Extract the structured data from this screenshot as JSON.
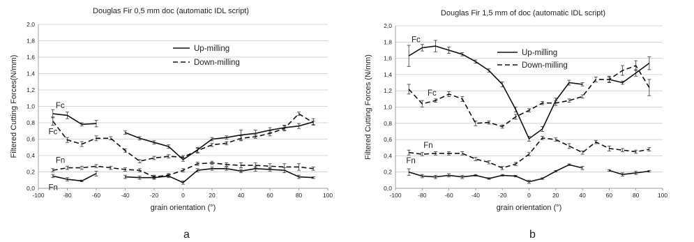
{
  "chart_data": [
    {
      "type": "line",
      "title": "Douglas Fir 0,5 mm doc (automatic IDL script)",
      "xlabel": "grain orientation (°)",
      "ylabel": "Filtered Cutting Forces(N/mm)",
      "panel_label": "a",
      "xlim": [
        -100,
        100
      ],
      "ylim": [
        0,
        2
      ],
      "xticks": [
        "-100",
        "-80",
        "-60",
        "-40",
        "-20",
        "0",
        "20",
        "40",
        "60",
        "80",
        "100"
      ],
      "yticks": [
        "0,0",
        "0,2",
        "0,4",
        "0,6",
        "0,8",
        "1,0",
        "1,2",
        "1,4",
        "1,6",
        "1,8",
        "2,0"
      ],
      "grid": true,
      "legend": [
        "Up-milling",
        "Down-milling"
      ],
      "legend_position": "top-center",
      "series": [
        {
          "name": "Up-milling",
          "label": "Fc",
          "style": "solid",
          "segments": [
            {
              "x": [
                -90,
                -80,
                -70,
                -60
              ],
              "y": [
                0.91,
                0.89,
                0.78,
                0.79
              ],
              "err": [
                0.05,
                0.04,
                0.02,
                0.04
              ]
            },
            {
              "x": [
                -40,
                -30,
                -20,
                -10,
                0,
                10,
                20,
                30,
                40,
                50,
                60,
                70,
                80,
                90
              ],
              "y": [
                0.68,
                0.61,
                0.56,
                0.51,
                0.35,
                0.47,
                0.6,
                0.62,
                0.65,
                0.67,
                0.71,
                0.74,
                0.76,
                0.81
              ],
              "err": [
                0.02,
                0.02,
                0.02,
                0.02,
                0.02,
                0.03,
                0.02,
                0.02,
                0.06,
                0.04,
                0.03,
                0.03,
                0.03,
                0.04
              ]
            }
          ]
        },
        {
          "name": "Down-milling",
          "label": "Fc",
          "style": "dashed",
          "segments": [
            {
              "x": [
                -90,
                -80,
                -70,
                -60,
                -50,
                -40,
                -30,
                -20,
                -10,
                0,
                10,
                20,
                30,
                40,
                50,
                60,
                70,
                80,
                90
              ],
              "y": [
                0.82,
                0.59,
                0.54,
                0.61,
                0.61,
                0.46,
                0.33,
                0.37,
                0.39,
                0.38,
                0.46,
                0.53,
                0.55,
                0.61,
                0.63,
                0.67,
                0.73,
                0.91,
                0.8
              ],
              "err": [
                0.05,
                0.03,
                0.03,
                0.03,
                0.02,
                0.02,
                0.02,
                0.02,
                0.02,
                0.02,
                0.03,
                0.02,
                0.02,
                0.03,
                0.02,
                0.03,
                0.03,
                0.02,
                0.02
              ]
            }
          ]
        },
        {
          "name": "Up-milling",
          "label": "Fn",
          "style": "solid",
          "segments": [
            {
              "x": [
                -90,
                -80,
                -70,
                -60
              ],
              "y": [
                0.15,
                0.11,
                0.09,
                0.18
              ],
              "err": [
                0.02,
                0.02,
                0.01,
                0.03
              ]
            },
            {
              "x": [
                -40,
                -30,
                -20,
                -10,
                0,
                10,
                20,
                30,
                40,
                50,
                60,
                70,
                80,
                90
              ],
              "y": [
                0.14,
                0.13,
                0.13,
                0.15,
                0.07,
                0.22,
                0.24,
                0.24,
                0.21,
                0.24,
                0.23,
                0.22,
                0.14,
                0.13
              ],
              "err": [
                0.02,
                0.02,
                0.02,
                0.02,
                0.02,
                0.02,
                0.02,
                0.02,
                0.02,
                0.03,
                0.02,
                0.03,
                0.02,
                0.01
              ]
            }
          ]
        },
        {
          "name": "Down-milling",
          "label": "Fn",
          "style": "dashed",
          "segments": [
            {
              "x": [
                -90,
                -80,
                -70,
                -60,
                -50,
                -40,
                -30,
                -20,
                -10,
                0,
                10,
                20,
                30,
                40,
                50,
                60,
                70,
                80,
                90
              ],
              "y": [
                0.22,
                0.25,
                0.25,
                0.27,
                0.25,
                0.23,
                0.22,
                0.14,
                0.16,
                0.22,
                0.3,
                0.31,
                0.29,
                0.28,
                0.28,
                0.27,
                0.26,
                0.26,
                0.24
              ],
              "err": [
                0.02,
                0.02,
                0.02,
                0.02,
                0.02,
                0.02,
                0.02,
                0.02,
                0.02,
                0.02,
                0.02,
                0.02,
                0.02,
                0.03,
                0.03,
                0.03,
                0.04,
                0.04,
                0.02
              ]
            }
          ]
        }
      ],
      "curve_labels": [
        {
          "text": "Fc",
          "x": -88,
          "y": 0.98
        },
        {
          "text": "Fc",
          "x": -93,
          "y": 0.66
        },
        {
          "text": "Fn",
          "x": -88,
          "y": 0.31
        },
        {
          "text": "Fn",
          "x": -93,
          "y": -0.02
        }
      ]
    },
    {
      "type": "line",
      "title": "Douglas Fir 1,5 mm of doc (automatic IDL script)",
      "xlabel": "grain orientation (°)",
      "ylabel": "Filtered Cutting Forces (N/mm)",
      "panel_label": "b",
      "xlim": [
        -100,
        100
      ],
      "ylim": [
        0,
        2
      ],
      "xticks": [
        "-100",
        "-80",
        "-60",
        "-40",
        "-20",
        "0",
        "20",
        "40",
        "60",
        "80",
        "100"
      ],
      "yticks": [
        "0,0",
        "0,2",
        "0,4",
        "0,6",
        "0,8",
        "1,0",
        "1,2",
        "1,4",
        "1,6",
        "1,8",
        "2,0"
      ],
      "grid": true,
      "legend": [
        "Up-milling",
        "Down-milling"
      ],
      "legend_position": "top-center",
      "series": [
        {
          "name": "Up-milling",
          "label": "Fc",
          "style": "solid",
          "segments": [
            {
              "x": [
                -90,
                -80,
                -70,
                -60,
                -50,
                -40,
                -30,
                -20,
                -10,
                0,
                10,
                20,
                30,
                40,
                50,
                60,
                70,
                80,
                90
              ],
              "y": [
                1.63,
                1.73,
                1.75,
                1.7,
                1.65,
                1.56,
                1.45,
                1.28,
                0.97,
                0.61,
                0.73,
                1.08,
                1.3,
                1.28,
                null,
                1.34,
                1.3,
                1.42,
                1.54
              ],
              "err": [
                0.13,
                0.04,
                0.07,
                0.04,
                0.02,
                0.02,
                0.02,
                0.03,
                0.03,
                0.03,
                0.03,
                0.03,
                0.03,
                0.02,
                0,
                0.03,
                0.02,
                0.04,
                0.08
              ]
            }
          ]
        },
        {
          "name": "Down-milling",
          "label": "Fc",
          "style": "dashed",
          "segments": [
            {
              "x": [
                -90,
                -80,
                -70,
                -60,
                -50,
                -40,
                -30,
                -20,
                -10,
                0,
                10,
                20,
                30,
                40,
                50,
                60,
                70,
                80,
                90
              ],
              "y": [
                1.22,
                1.04,
                1.08,
                1.16,
                1.1,
                0.8,
                0.81,
                0.76,
                0.88,
                0.96,
                1.05,
                1.05,
                1.08,
                1.13,
                1.34,
                1.34,
                1.45,
                1.51,
                1.24
              ],
              "err": [
                0.06,
                0.04,
                0.02,
                0.03,
                0.03,
                0.03,
                0.02,
                0.02,
                0.03,
                0.02,
                0.02,
                0.03,
                0.02,
                0.02,
                0.03,
                0.04,
                0.06,
                0.06,
                0.1
              ]
            }
          ]
        },
        {
          "name": "Up-milling",
          "label": "Fn",
          "style": "solid",
          "segments": [
            {
              "x": [
                -90,
                -80,
                -70,
                -60,
                -50,
                -40,
                -30,
                -20,
                -10,
                0,
                10,
                20,
                30,
                40
              ],
              "y": [
                0.2,
                0.15,
                0.14,
                0.16,
                0.14,
                0.16,
                0.12,
                0.16,
                0.15,
                0.08,
                0.12,
                0.21,
                0.29,
                0.25
              ],
              "err": [
                0.04,
                0.02,
                0.02,
                0.02,
                0.02,
                0.01,
                0.01,
                0.01,
                0.01,
                0.02,
                0.01,
                0.01,
                0.01,
                0.02
              ]
            },
            {
              "x": [
                60,
                70,
                80,
                90
              ],
              "y": [
                0.22,
                0.17,
                0.19,
                0.21
              ],
              "err": [
                0.01,
                0.02,
                0.02,
                0.01
              ]
            }
          ]
        },
        {
          "name": "Down-milling",
          "label": "Fn",
          "style": "dashed",
          "segments": [
            {
              "x": [
                -90,
                -80,
                -70,
                -60,
                -50,
                -40,
                -30,
                -20,
                -10,
                0,
                10,
                20,
                30,
                40,
                50,
                60,
                70,
                80,
                90
              ],
              "y": [
                0.44,
                0.42,
                0.43,
                0.43,
                0.43,
                0.36,
                0.32,
                0.25,
                0.3,
                0.42,
                0.62,
                0.6,
                0.52,
                0.44,
                0.57,
                0.49,
                0.47,
                0.45,
                0.48
              ],
              "err": [
                0.03,
                0.02,
                0.02,
                0.02,
                0.02,
                0.02,
                0.02,
                0.02,
                0.02,
                0.02,
                0.02,
                0.02,
                0.03,
                0.02,
                0.02,
                0.03,
                0.02,
                0.02,
                0.02
              ]
            }
          ]
        }
      ],
      "curve_labels": [
        {
          "text": "Fc",
          "x": -88,
          "y": 1.8
        },
        {
          "text": "Fc",
          "x": -76,
          "y": 1.14
        },
        {
          "text": "Fn",
          "x": -79,
          "y": 0.5
        },
        {
          "text": "Fn",
          "x": -92,
          "y": 0.31
        }
      ]
    }
  ]
}
